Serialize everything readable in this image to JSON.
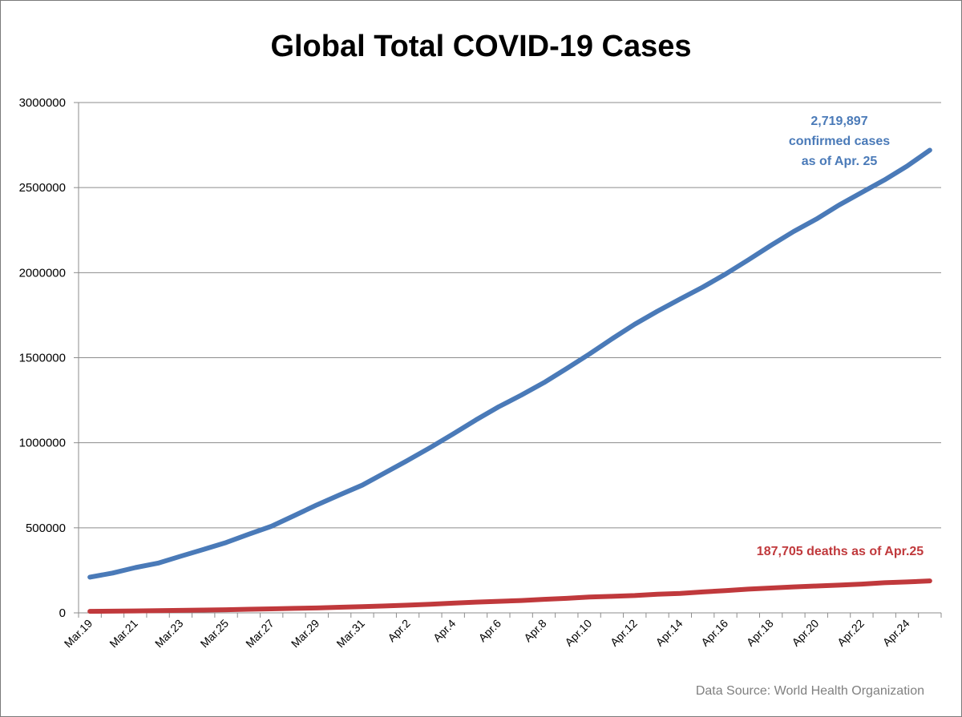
{
  "chart_data": {
    "type": "line",
    "title": "Global Total COVID-19 Cases",
    "xlabel": "",
    "ylabel": "",
    "ylim": [
      0,
      3000000
    ],
    "yticks": [
      "0",
      "500000",
      "1000000",
      "1500000",
      "2000000",
      "2500000",
      "3000000"
    ],
    "x": [
      "Mar.19",
      "Mar.20",
      "Mar.21",
      "Mar.22",
      "Mar.23",
      "Mar.24",
      "Mar.25",
      "Mar.26",
      "Mar.27",
      "Mar.28",
      "Mar.29",
      "Mar.30",
      "Mar.31",
      "Apr.1",
      "Apr.2",
      "Apr.3",
      "Apr.4",
      "Apr.5",
      "Apr.6",
      "Apr.7",
      "Apr.8",
      "Apr.9",
      "Apr.10",
      "Apr.11",
      "Apr.12",
      "Apr.13",
      "Apr.14",
      "Apr.15",
      "Apr.16",
      "Apr.17",
      "Apr.18",
      "Apr.19",
      "Apr.20",
      "Apr.21",
      "Apr.22",
      "Apr.23",
      "Apr.24",
      "Apr.25"
    ],
    "xtick_labels": [
      "Mar.19",
      "Mar.21",
      "Mar.23",
      "Mar.25",
      "Mar.27",
      "Mar.29",
      "Mar.31",
      "Apr.2",
      "Apr.4",
      "Apr.6",
      "Apr.8",
      "Apr.10",
      "Apr.12",
      "Apr.14",
      "Apr.16",
      "Apr.18",
      "Apr.20",
      "Apr.22",
      "Apr.24"
    ],
    "grid": true,
    "series": [
      {
        "name": "",
        "color": "#4a7ab8",
        "values": [
          209839,
          234073,
          266073,
          292142,
          332930,
          372757,
          413467,
          462684,
          509164,
          571678,
          634835,
          693224,
          750890,
          823626,
          896450,
          972303,
          1051635,
          1133758,
          1210956,
          1279722,
          1353361,
          1436198,
          1521252,
          1610909,
          1696588,
          1773084,
          1844863,
          1914916,
          1991562,
          2074529,
          2160207,
          2241778,
          2314621,
          2397216,
          2471136,
          2544792,
          2626321,
          2719897
        ]
      },
      {
        "name": "",
        "color": "#c0393c",
        "values": [
          8778,
          10048,
          11184,
          12783,
          14510,
          16231,
          18440,
          21297,
          23335,
          26494,
          28976,
          33106,
          36405,
          40598,
          45526,
          50325,
          56986,
          62784,
          67594,
          72614,
          79235,
          85521,
          92798,
          97039,
          101804,
          109650,
          114198,
          123010,
          130885,
          139378,
          146198,
          152551,
          157847,
          162956,
          169006,
          176983,
          181938,
          187705
        ]
      }
    ],
    "annotations": {
      "cases_line1": "2,719,897",
      "cases_line2": "confirmed cases",
      "cases_line3": "as of Apr. 25",
      "deaths": "187,705 deaths as of Apr.25"
    },
    "source": "Data Source: World Health Organization"
  }
}
